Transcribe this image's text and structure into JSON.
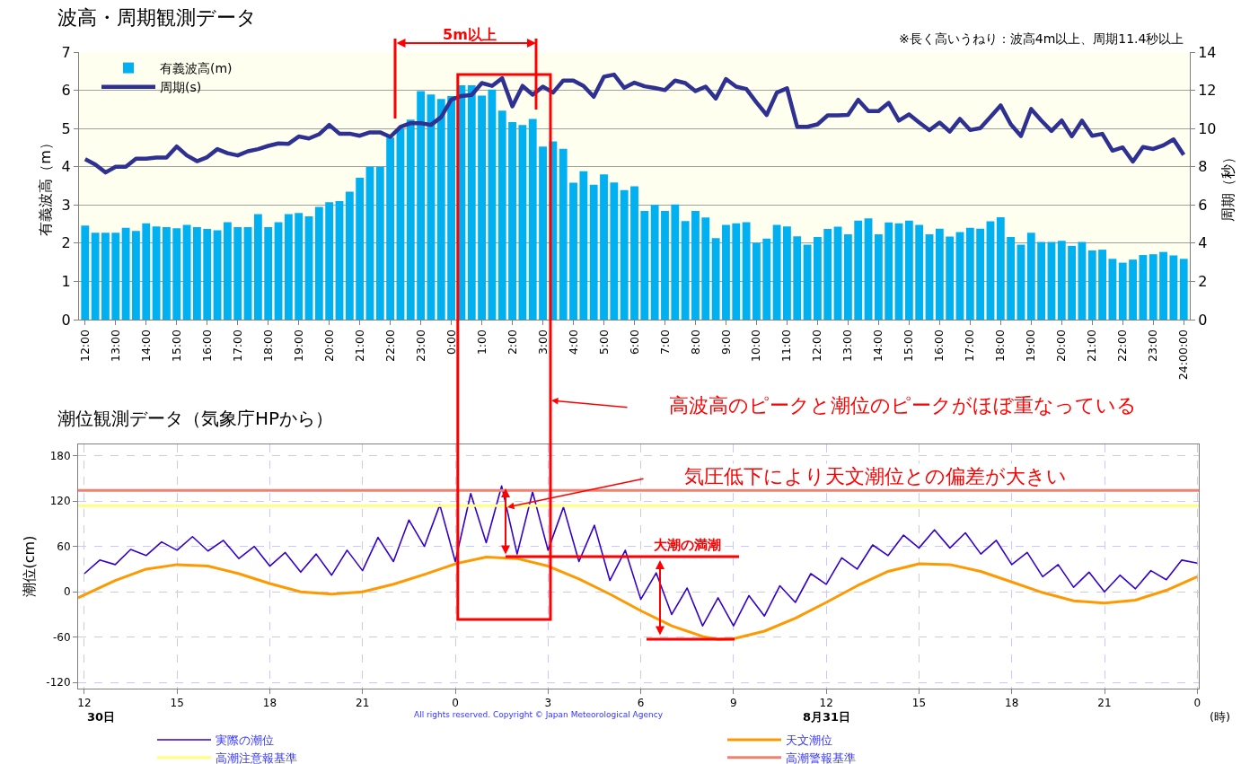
{
  "chart_data": [
    {
      "type": "bar",
      "title": "波高・周期観測データ",
      "ylabel": "有義波高（m）",
      "y2label": "周期（秒）",
      "annotations": [
        "※長く高いうねり：波高4m以上、周期11.4秒以上",
        "5m以上",
        "高波高のピークと潮位のピークがほぼ重なっている"
      ],
      "categories": [
        "12:00",
        null,
        null,
        "13:00",
        null,
        null,
        "14:00",
        null,
        null,
        "15:00",
        null,
        null,
        "16:00",
        null,
        null,
        "17:00",
        null,
        null,
        "18:00",
        null,
        null,
        "19:00",
        null,
        null,
        "20:00",
        null,
        null,
        "21:00",
        null,
        null,
        "22:00",
        null,
        null,
        "23:00",
        null,
        null,
        "0:00",
        null,
        null,
        "1:00",
        null,
        null,
        "2:00",
        null,
        null,
        "3:00",
        null,
        null,
        "4:00",
        null,
        null,
        "5:00",
        null,
        null,
        "6:00",
        null,
        null,
        "7:00",
        null,
        null,
        "8:00",
        null,
        null,
        "9:00",
        null,
        null,
        "10:00",
        null,
        null,
        "11:00",
        null,
        null,
        "12:00",
        null,
        null,
        "13:00",
        null,
        null,
        "14:00",
        null,
        null,
        "15:00",
        null,
        null,
        "16:00",
        null,
        null,
        "17:00",
        null,
        null,
        "18:00",
        null,
        null,
        "19:00",
        null,
        null,
        "20:00",
        null,
        null,
        "21:00",
        null,
        null,
        "22:00",
        null,
        null,
        "23:00",
        null,
        null,
        "24:00:00"
      ],
      "series": [
        {
          "name": "有義波高(m)",
          "color": "#00b0f0",
          "values": [
            2.46,
            2.27,
            2.27,
            2.27,
            2.4,
            2.32,
            2.52,
            2.44,
            2.42,
            2.39,
            2.48,
            2.42,
            2.37,
            2.34,
            2.55,
            2.42,
            2.42,
            2.76,
            2.42,
            2.55,
            2.76,
            2.79,
            2.7,
            2.95,
            3.07,
            3.1,
            3.35,
            3.71,
            4.0,
            4.0,
            4.76,
            5.0,
            5.23,
            5.98,
            5.89,
            5.77,
            5.85,
            6.13,
            6.13,
            5.86,
            6.02,
            5.47,
            5.17,
            5.09,
            5.25,
            4.53,
            4.66,
            4.47,
            3.58,
            3.88,
            3.53,
            3.8,
            3.59,
            3.39,
            3.49,
            2.84,
            3.0,
            2.84,
            3.01,
            2.58,
            2.84,
            2.67,
            2.13,
            2.48,
            2.52,
            2.55,
            2.01,
            2.12,
            2.48,
            2.44,
            2.18,
            1.96,
            2.16,
            2.37,
            2.43,
            2.23,
            2.59,
            2.65,
            2.23,
            2.54,
            2.52,
            2.59,
            2.48,
            2.23,
            2.38,
            2.17,
            2.29,
            2.4,
            2.38,
            2.57,
            2.68,
            2.16,
            1.96,
            2.27,
            2.03,
            2.03,
            2.06,
            1.93,
            2.03,
            1.81,
            1.83,
            1.59,
            1.49,
            1.57,
            1.69,
            1.71,
            1.77,
            1.68,
            1.59
          ]
        },
        {
          "name": "周期(s)",
          "type": "line",
          "axis": "y2",
          "color": "#2e3192",
          "values": [
            8.4,
            8.12,
            7.7,
            8.0,
            8.0,
            8.42,
            8.42,
            8.48,
            8.48,
            9.06,
            8.59,
            8.29,
            8.5,
            8.92,
            8.71,
            8.59,
            8.81,
            8.92,
            9.09,
            9.22,
            9.2,
            9.58,
            9.48,
            9.7,
            10.19,
            9.73,
            9.73,
            9.62,
            9.8,
            9.8,
            9.56,
            10.08,
            10.28,
            10.28,
            10.19,
            10.6,
            11.52,
            11.7,
            11.76,
            12.38,
            12.23,
            12.63,
            11.16,
            12.23,
            11.77,
            12.19,
            11.88,
            12.51,
            12.51,
            12.23,
            11.66,
            12.71,
            12.82,
            12.13,
            12.4,
            12.21,
            12.12,
            12.01,
            12.51,
            12.38,
            11.96,
            12.19,
            11.57,
            12.59,
            12.19,
            12.07,
            11.36,
            10.71,
            11.88,
            12.1,
            10.09,
            10.09,
            10.22,
            10.69,
            10.69,
            10.71,
            11.5,
            10.91,
            10.91,
            11.34,
            10.41,
            10.74,
            10.31,
            9.91,
            10.31,
            9.84,
            10.5,
            9.92,
            10.02,
            10.61,
            11.21,
            10.22,
            9.61,
            11.02,
            10.42,
            9.87,
            10.42,
            9.59,
            10.41,
            9.62,
            9.72,
            8.84,
            9.01,
            8.27,
            9.03,
            8.93,
            9.12,
            9.43,
            8.62
          ]
        }
      ],
      "ylim": [
        0,
        7
      ],
      "yticks": [
        0,
        1,
        2,
        3,
        4,
        5,
        6,
        7
      ],
      "y2lim": [
        0,
        14
      ],
      "y2ticks": [
        0,
        2,
        4,
        6,
        8,
        10,
        12,
        14
      ],
      "grid": "y",
      "legend": "top left"
    },
    {
      "type": "line",
      "title": "潮位観測データ（気象庁HPから）",
      "ylabel": "潮位(cm)",
      "xlabel": "(時)",
      "annotations": [
        "気圧低下により天文潮位との偏差が大きい",
        "大潮の満潮",
        "30日",
        "8月31日",
        "All rights reserved. Copyright © Japan Meteorological Agency"
      ],
      "series": [
        {
          "name": "実際の潮位",
          "color": "#3300cc",
          "x": [
            "--08-30T12:00",
            "--08-30T12:30",
            "--08-30T13:00",
            "--08-30T13:30",
            "--08-30T14:00",
            "--08-30T14:30",
            "--08-30T15:00",
            "--08-30T15:30",
            "--08-30T16:00",
            "--08-30T16:30",
            "--08-30T17:00",
            "--08-30T17:30",
            "--08-30T18:00",
            "--08-30T18:30",
            "--08-30T19:00",
            "--08-30T19:30",
            "--08-30T20:00",
            "--08-30T20:30",
            "--08-30T21:00",
            "--08-30T21:30",
            "--08-30T22:00",
            "--08-30T22:30",
            "--08-30T23:00",
            "--08-30T23:30",
            "--08-31T00:00",
            "--08-31T00:30",
            "--08-31T01:00",
            "--08-31T01:30",
            "--08-31T02:00",
            "--08-31T02:30",
            "--08-31T03:00",
            "--08-31T03:30",
            "--08-31T04:00",
            "--08-31T04:30",
            "--08-31T05:00",
            "--08-31T05:30",
            "--08-31T06:00",
            "--08-31T06:30",
            "--08-31T07:00",
            "--08-31T07:30",
            "--08-31T08:00",
            "--08-31T08:30",
            "--08-31T09:00",
            "--08-31T09:30",
            "--08-31T10:00",
            "--08-31T10:30",
            "--08-31T11:00",
            "--08-31T11:30",
            "--08-31T12:00",
            "--08-31T12:30",
            "--08-31T13:00",
            "--08-31T13:30",
            "--08-31T14:00",
            "--08-31T14:30",
            "--08-31T15:00",
            "--08-31T15:30",
            "--08-31T16:00",
            "--08-31T16:30",
            "--08-31T17:00",
            "--08-31T17:30",
            "--08-31T18:00",
            "--08-31T18:30",
            "--08-31T19:00",
            "--08-31T19:30",
            "--08-31T20:00",
            "--08-31T20:30",
            "--08-31T21:00",
            "--08-31T21:30",
            "--08-31T22:00",
            "--08-31T22:30",
            "--08-31T23:00",
            "--08-31T23:30",
            "--09-01T00:00"
          ],
          "values": [
            24,
            42,
            36,
            56,
            48,
            66,
            55,
            73,
            54,
            68,
            44,
            60,
            34,
            52,
            26,
            50,
            22,
            55,
            28,
            72,
            40,
            95,
            60,
            115,
            40,
            130,
            65,
            140,
            50,
            132,
            55,
            112,
            40,
            88,
            15,
            55,
            -10,
            25,
            -30,
            5,
            -45,
            -8,
            -45,
            -5,
            -32,
            8,
            -14,
            24,
            10,
            45,
            30,
            62,
            48,
            75,
            58,
            82,
            58,
            78,
            50,
            68,
            36,
            52,
            20,
            36,
            6,
            26,
            0,
            22,
            4,
            28,
            16,
            42,
            38
          ]
        },
        {
          "name": "天文潮位",
          "color": "#ff9900",
          "x": [
            "--08-30T11:48",
            "--08-30T12:00",
            "--08-30T13:00",
            "--08-30T14:00",
            "--08-30T15:00",
            "--08-30T16:00",
            "--08-30T17:00",
            "--08-30T18:00",
            "--08-30T19:00",
            "--08-30T20:00",
            "--08-30T21:00",
            "--08-30T22:00",
            "--08-30T23:00",
            "--08-31T00:00",
            "--08-31T01:00",
            "--08-31T02:00",
            "--08-31T03:00",
            "--08-31T04:00",
            "--08-31T05:00",
            "--08-31T06:00",
            "--08-31T07:00",
            "--08-31T08:00",
            "--08-31T08:30",
            "--08-31T09:00",
            "--08-31T10:00",
            "--08-31T11:00",
            "--08-31T12:00",
            "--08-31T13:00",
            "--08-31T14:00",
            "--08-31T15:00",
            "--08-31T16:00",
            "--08-31T17:00",
            "--08-31T18:00",
            "--08-31T19:00",
            "--08-31T20:00",
            "--08-31T21:00",
            "--08-31T22:00",
            "--08-31T23:00",
            "--09-01T00:00"
          ],
          "values": [
            -8,
            -4,
            15,
            30,
            36,
            34,
            24,
            11,
            0,
            -3,
            0,
            10,
            23,
            37,
            46,
            44,
            34,
            17,
            -3,
            -25,
            -45,
            -59,
            -63,
            -62,
            -52,
            -35,
            -14,
            8,
            27,
            37,
            36,
            27,
            13,
            -1,
            -12,
            -15,
            -11,
            2,
            20
          ]
        }
      ],
      "ref_lines": [
        {
          "axis": "y",
          "value": 114,
          "label": "高潮注意報基準",
          "color": "#ffff80"
        },
        {
          "axis": "y",
          "value": 134,
          "label": "高潮警報基準",
          "color": "#f08070"
        }
      ],
      "xlim": [
        "--08-30T11:48",
        "--09-01T00:03"
      ],
      "xticks": [
        {
          "value": "--08-30T12:00",
          "label": "12"
        },
        {
          "value": "--08-30T15:00",
          "label": "15"
        },
        {
          "value": "--08-30T18:00",
          "label": "18"
        },
        {
          "value": "--08-30T21:00",
          "label": "21"
        },
        {
          "value": "--08-31T00:00",
          "label": "0"
        },
        {
          "value": "--08-31T03:00",
          "label": "3"
        },
        {
          "value": "--08-31T06:00",
          "label": "6"
        },
        {
          "value": "--08-31T09:00",
          "label": "9"
        },
        {
          "value": "--08-31T12:00",
          "label": "12"
        },
        {
          "value": "--08-31T15:00",
          "label": "15"
        },
        {
          "value": "--08-31T18:00",
          "label": "18"
        },
        {
          "value": "--08-31T21:00",
          "label": "21"
        },
        {
          "value": "--09-01T00:00",
          "label": "0"
        }
      ],
      "ylim": [
        -128,
        195
      ],
      "yticks": [
        -120,
        -60,
        0,
        60,
        120,
        180
      ],
      "grid": true,
      "legend": "bottom"
    }
  ]
}
